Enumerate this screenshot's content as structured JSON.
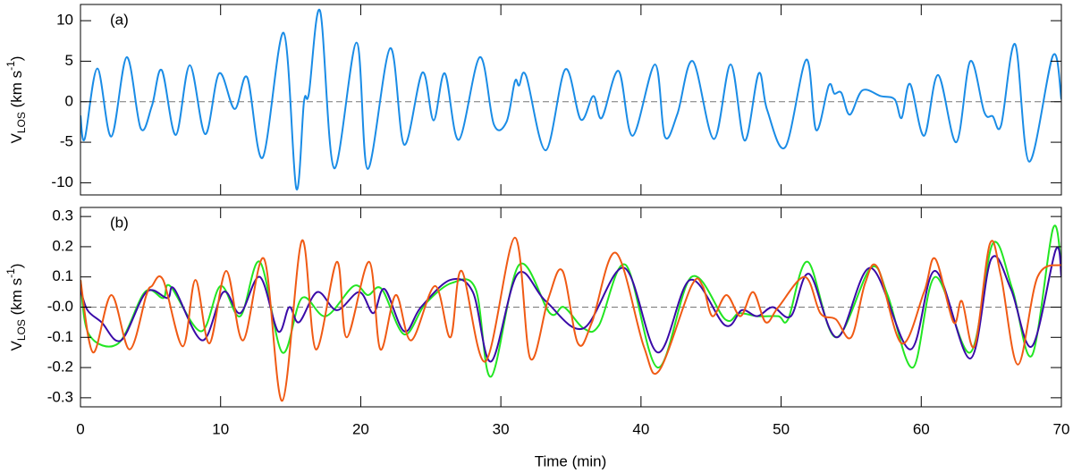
{
  "chart_data": [
    {
      "type": "line",
      "label": "(a)",
      "ylabel": [
        "V",
        "LOS",
        " (km s",
        "-1",
        ")"
      ],
      "xlim": [
        0,
        70
      ],
      "xticks": [
        0,
        10,
        20,
        30,
        40,
        50,
        60,
        70
      ],
      "ylim": [
        -11.5,
        12
      ],
      "yticks": [
        -10,
        -5,
        0,
        5,
        10
      ],
      "reference_line": 0,
      "series": [
        {
          "color": "#1a8ce6",
          "x": [
            0,
            0.3,
            1.2,
            2.2,
            3.3,
            4.3,
            5.1,
            5.8,
            6.8,
            7.8,
            8.9,
            9.9,
            11.0,
            11.9,
            13.0,
            14.5,
            15.4,
            15.95,
            16.3,
            17.1,
            18.1,
            19.7,
            20.5,
            22.1,
            23.1,
            24.4,
            25.2,
            26.0,
            27.0,
            28.5,
            29.5,
            30.4,
            31.0,
            31.3,
            31.8,
            33.2,
            34.6,
            35.7,
            36.6,
            37.2,
            38.4,
            39.4,
            41.0,
            41.7,
            42.6,
            43.7,
            45.2,
            46.4,
            47.4,
            48.4,
            49.0,
            50.3,
            51.8,
            52.5,
            53.4,
            53.8,
            54.3,
            54.9,
            55.8,
            57.1,
            58.1,
            58.6,
            59.2,
            60.2,
            61.2,
            62.5,
            63.5,
            64.5,
            65.1,
            65.7,
            66.7,
            67.7,
            69.4,
            70
          ],
          "values": [
            -1.7,
            -4.6,
            4.1,
            -4.3,
            5.5,
            -3.3,
            -0.5,
            3.9,
            -4.1,
            4.5,
            -4.0,
            3.5,
            -0.9,
            3.0,
            -6.9,
            8.5,
            -10.7,
            0,
            1.0,
            11.2,
            -8.2,
            7.3,
            -8.3,
            6.6,
            -5.3,
            3.6,
            -2.3,
            3.5,
            -4.7,
            5.5,
            -2.8,
            -2.5,
            2.5,
            2.0,
            3.2,
            -6.0,
            4.0,
            -2.2,
            0.7,
            -2.0,
            3.8,
            -4.2,
            4.6,
            -4.3,
            -1.5,
            5.0,
            -4.6,
            4.6,
            -4.8,
            3.5,
            -1.0,
            -5.6,
            5.2,
            -3.5,
            2.0,
            1.0,
            1.1,
            -1.6,
            1.4,
            0.7,
            0.3,
            -2.0,
            2.2,
            -4.2,
            3.3,
            -5.0,
            5.0,
            -1.3,
            -1.8,
            -2.9,
            7.1,
            -7.4,
            5.7,
            0.3
          ]
        }
      ]
    },
    {
      "type": "line",
      "label": "(b)",
      "ylabel": [
        "V",
        "LOS",
        " (km s",
        "-1",
        ")"
      ],
      "xlabel": "Time (min)",
      "xlim": [
        0,
        70
      ],
      "xticks": [
        0,
        10,
        20,
        30,
        40,
        50,
        60,
        70
      ],
      "ylim": [
        -0.33,
        0.33
      ],
      "yticks": [
        -0.3,
        -0.2,
        -0.1,
        {
          "value": 0,
          "label": "-0.0"
        },
        0.1,
        0.2,
        0.3
      ],
      "reference_line": 0,
      "series": [
        {
          "color": "#22e622",
          "x": [
            0,
            0.6,
            2.7,
            4.6,
            5.9,
            6.4,
            8.6,
            10.0,
            11.4,
            12.8,
            14.4,
            15.8,
            17.5,
            19.5,
            20.5,
            21.5,
            23.1,
            24.6,
            26.5,
            28.2,
            29.3,
            31.3,
            33.5,
            34.5,
            35.9,
            37.0,
            38.9,
            41.2,
            43.6,
            46.0,
            47.0,
            48.3,
            49.8,
            50.5,
            51.9,
            53.9,
            56.4,
            57.6,
            59.4,
            61.0,
            63.5,
            65.1,
            66.5,
            67.9,
            69.4,
            70
          ],
          "values": [
            0.09,
            -0.09,
            -0.12,
            0.05,
            0.03,
            0.07,
            -0.08,
            0.07,
            -0.03,
            0.15,
            -0.15,
            0.03,
            -0.03,
            0.07,
            0.04,
            0.06,
            -0.09,
            0.01,
            0.08,
            0.06,
            -0.23,
            0.14,
            -0.02,
            0.0,
            -0.07,
            -0.06,
            0.14,
            -0.2,
            0.1,
            -0.04,
            -0.02,
            -0.03,
            -0.03,
            -0.04,
            0.15,
            -0.1,
            0.13,
            0.04,
            -0.2,
            0.1,
            -0.15,
            0.21,
            0.06,
            -0.16,
            0.26,
            0.14
          ]
        },
        {
          "color": "#3a0aa8",
          "x": [
            0,
            0.5,
            1.5,
            2.9,
            4.7,
            6.2,
            6.7,
            8.7,
            10.2,
            11.4,
            12.8,
            14.1,
            14.9,
            15.6,
            16.9,
            18.3,
            19.9,
            20.9,
            21.7,
            23.1,
            24.3,
            26.4,
            28.0,
            29.3,
            31.2,
            33.2,
            35.9,
            38.8,
            41.2,
            43.5,
            46.0,
            47.2,
            48.3,
            49.4,
            50.7,
            52.0,
            54.0,
            56.4,
            59.2,
            61.0,
            63.5,
            65.0,
            66.4,
            67.9,
            69.6,
            70
          ],
          "values": [
            0.06,
            -0.01,
            -0.05,
            -0.11,
            0.05,
            0.03,
            0.06,
            -0.11,
            0.05,
            -0.02,
            0.1,
            -0.08,
            0.0,
            -0.05,
            0.05,
            -0.01,
            0.05,
            -0.02,
            0.06,
            -0.08,
            0.0,
            0.09,
            0.05,
            -0.18,
            0.11,
            0.02,
            -0.07,
            0.13,
            -0.15,
            0.09,
            -0.06,
            -0.01,
            -0.03,
            0.0,
            -0.03,
            0.11,
            -0.1,
            0.13,
            -0.14,
            0.12,
            -0.17,
            0.16,
            0.06,
            -0.13,
            0.19,
            0.1
          ]
        },
        {
          "color": "#f05a14",
          "x": [
            0,
            0.9,
            2.2,
            3.5,
            4.7,
            5.1,
            5.9,
            7.3,
            8.2,
            9.2,
            10.4,
            11.6,
            13.1,
            14.4,
            15.8,
            16.8,
            18.3,
            19.0,
            20.6,
            21.4,
            22.5,
            23.6,
            25.3,
            26.4,
            27.2,
            28.9,
            31.0,
            32.1,
            33.4,
            34.4,
            35.5,
            36.5,
            38.2,
            40.2,
            41.3,
            43.6,
            44.4,
            45.1,
            46.1,
            47.1,
            48.0,
            48.9,
            49.8,
            51.7,
            52.8,
            53.9,
            55.0,
            56.0,
            56.9,
            58.6,
            60.2,
            61.0,
            62.3,
            62.9,
            63.8,
            64.9,
            65.7,
            66.9,
            68.3,
            70
          ],
          "values": [
            0.09,
            -0.15,
            0.04,
            -0.14,
            0.04,
            0.07,
            0.09,
            -0.13,
            0.09,
            -0.12,
            0.12,
            -0.11,
            0.16,
            -0.31,
            0.22,
            -0.14,
            0.15,
            -0.1,
            0.15,
            -0.14,
            0.04,
            -0.11,
            0.07,
            -0.1,
            0.12,
            -0.18,
            0.23,
            -0.17,
            0.03,
            0.12,
            -0.12,
            -0.05,
            0.18,
            -0.13,
            -0.21,
            0.07,
            0.07,
            -0.03,
            0.04,
            -0.03,
            0.05,
            -0.05,
            0.0,
            0.1,
            -0.02,
            -0.04,
            -0.1,
            0.08,
            0.13,
            -0.12,
            0.05,
            0.16,
            -0.05,
            0.02,
            -0.13,
            0.21,
            0.1,
            -0.19,
            0.1,
            0.14
          ]
        }
      ]
    }
  ]
}
